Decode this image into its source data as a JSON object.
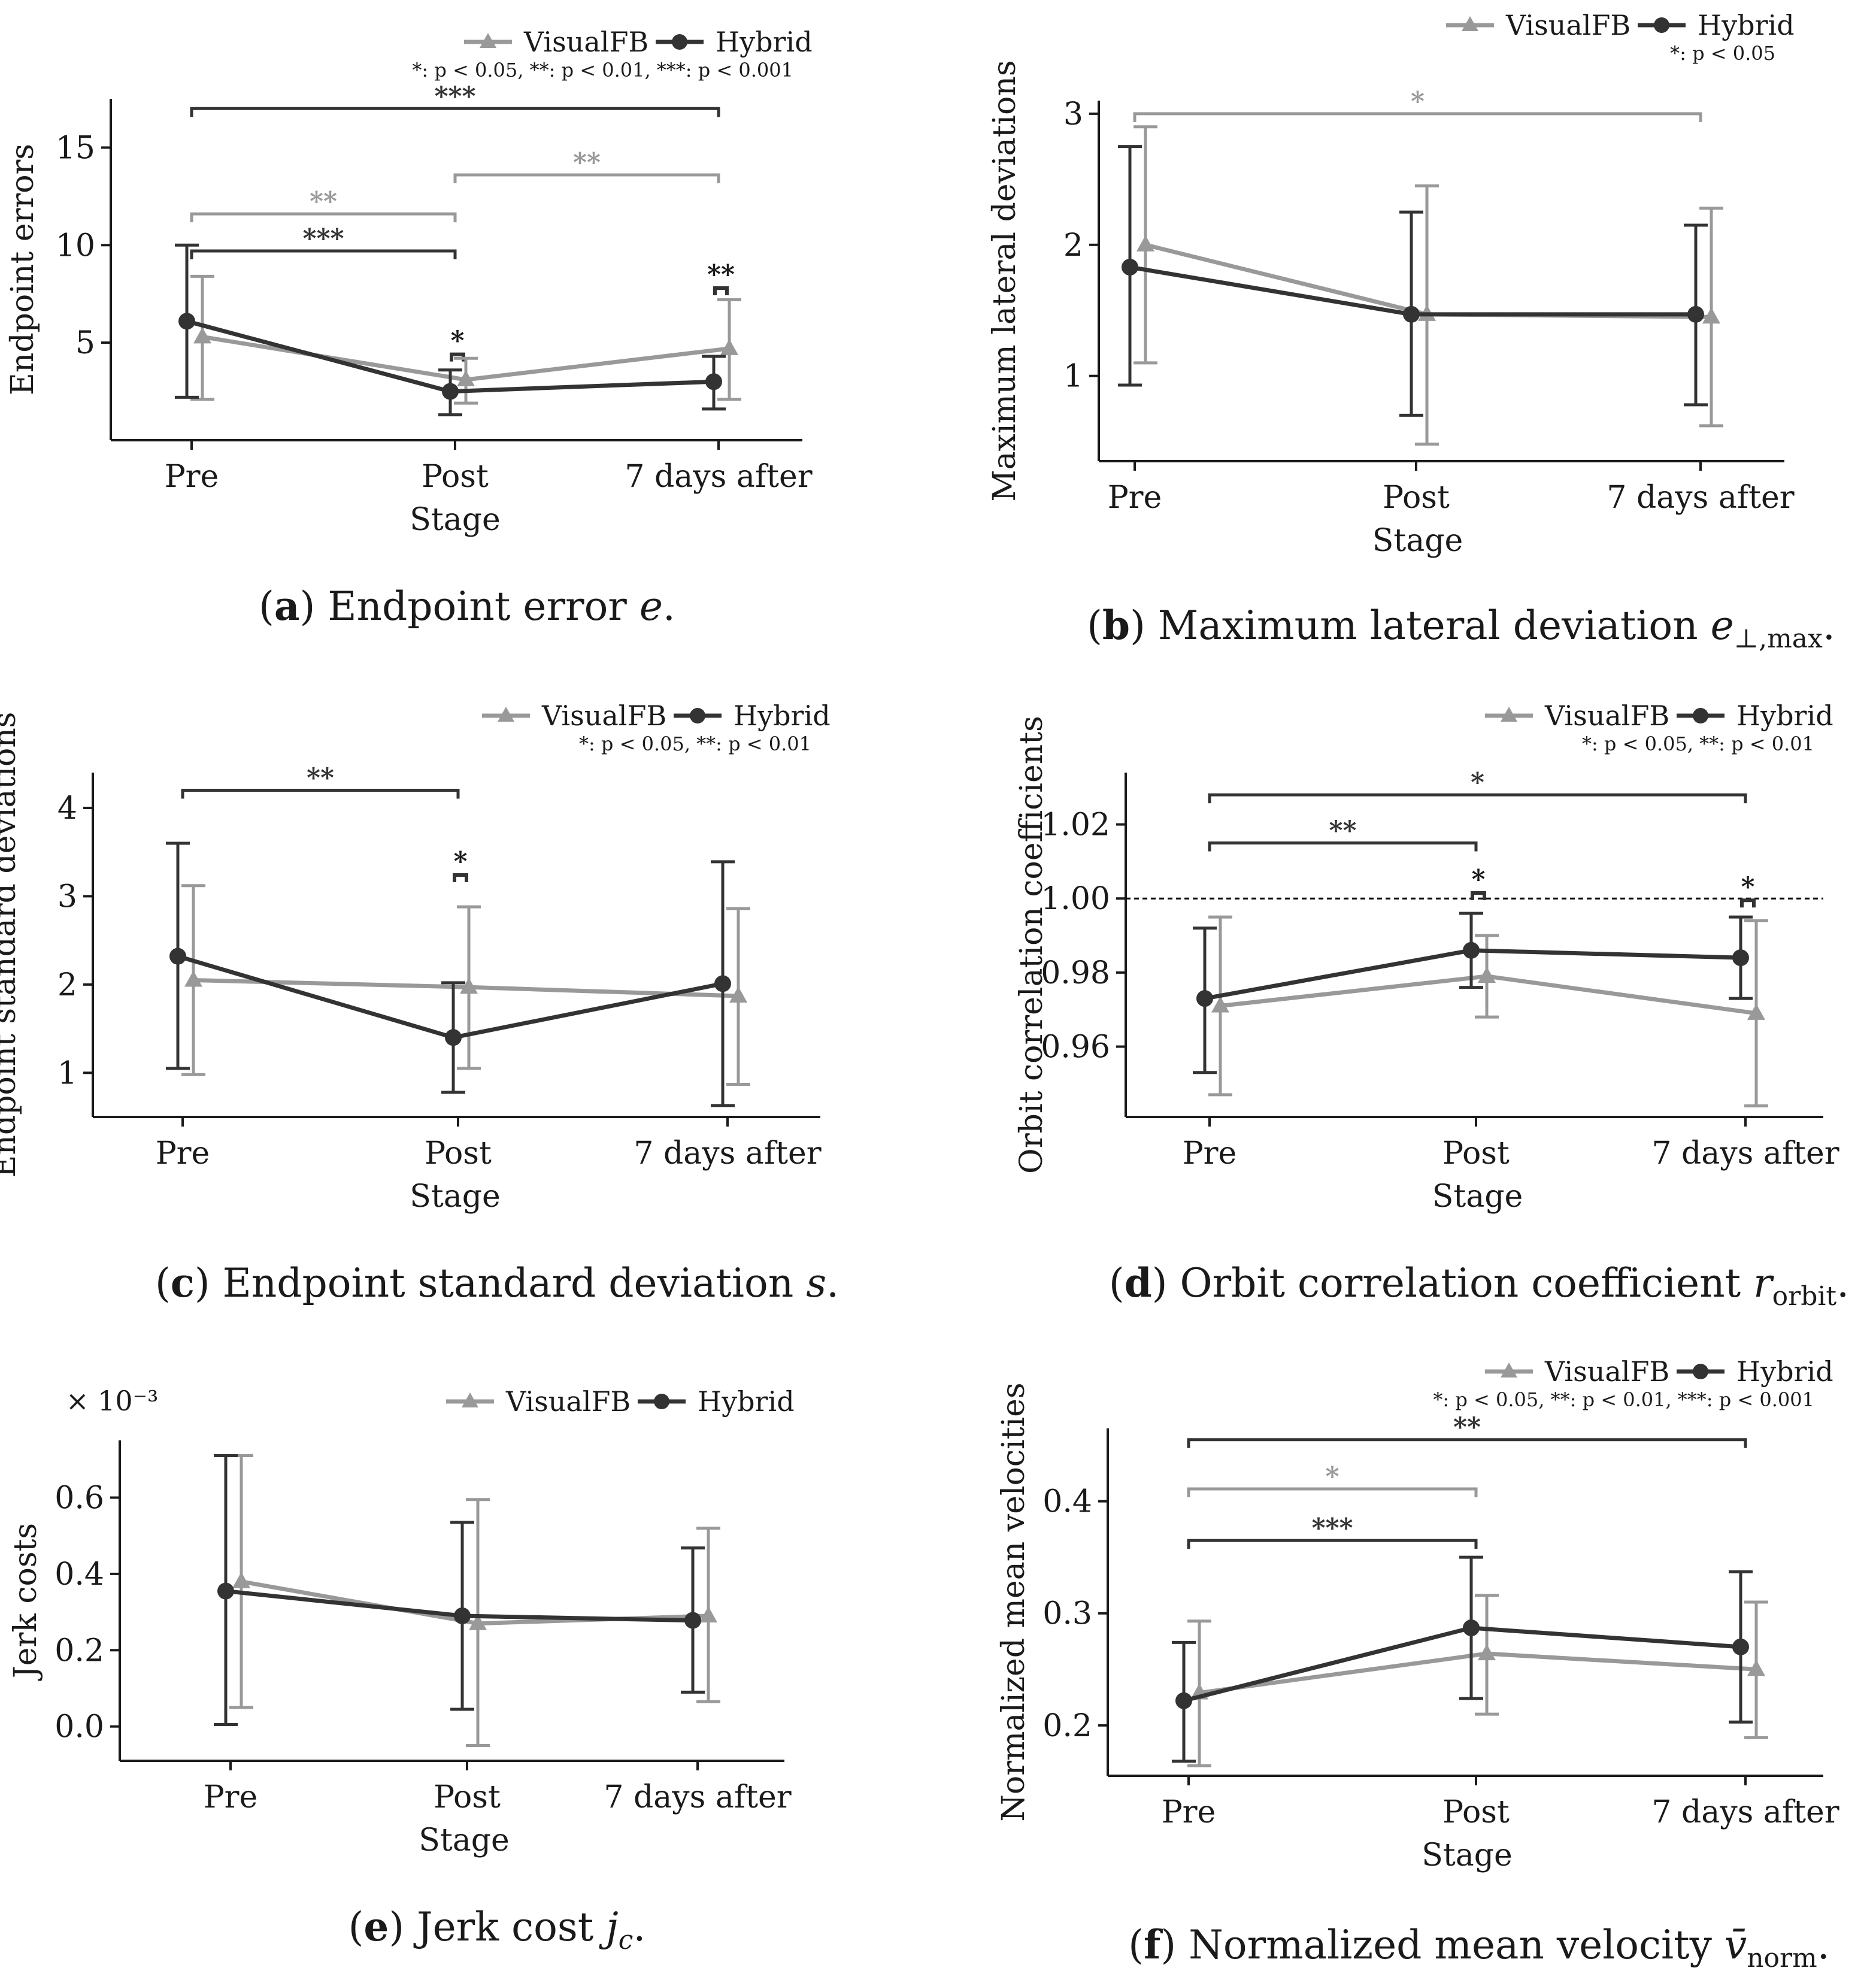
{
  "colors": {
    "visual": "#999999",
    "hybrid": "#333333",
    "axis": "#1a1a1a"
  },
  "chart_data": [
    {
      "type": "line",
      "id": "a",
      "caption": {
        "letter": "a",
        "text": "Endpoint error",
        "symbol": "e",
        "sub": "",
        "end": "."
      },
      "categories": [
        "Pre",
        "Post",
        "7 days after"
      ],
      "xlabel": "Stage",
      "ylabel": "Endpoint errors",
      "ylim": [
        0,
        17.5
      ],
      "yticks": [
        5,
        10,
        15
      ],
      "multiplier": "",
      "legend_position": "top-right",
      "pvalue_note": "*: p < 0.05, **: p < 0.01, ***: p < 0.001",
      "series": [
        {
          "name": "VisualFB",
          "key": "visual",
          "values": [
            5.3,
            3.1,
            4.7
          ],
          "lower": [
            2.1,
            1.9,
            2.1
          ],
          "upper": [
            8.4,
            4.2,
            7.2
          ]
        },
        {
          "name": "Hybrid",
          "key": "hybrid",
          "values": [
            6.1,
            2.5,
            3.0
          ],
          "lower": [
            2.2,
            1.3,
            1.6
          ],
          "upper": [
            10.0,
            3.6,
            4.3
          ]
        }
      ],
      "brackets": [
        {
          "from": 0,
          "to": 2,
          "y": 17.0,
          "label": "***",
          "key": "hybrid"
        },
        {
          "from": 1,
          "to": 2,
          "y": 13.6,
          "label": "**",
          "key": "visual"
        },
        {
          "from": 0,
          "to": 1,
          "y": 11.6,
          "label": "**",
          "key": "visual"
        },
        {
          "from": 0,
          "to": 1,
          "y": 9.7,
          "label": "***",
          "key": "hybrid"
        }
      ],
      "pair_marks": [
        {
          "at": 1,
          "y": 4.4,
          "label": "*"
        },
        {
          "at": 2,
          "y": 7.8,
          "label": "**"
        }
      ]
    },
    {
      "type": "line",
      "id": "b",
      "caption": {
        "letter": "b",
        "text": "Maximum lateral deviation",
        "symbol": "e",
        "sub": "⊥,max",
        "end": "."
      },
      "categories": [
        "Pre",
        "Post",
        "7 days after"
      ],
      "xlabel": "Stage",
      "ylabel": "Maximum lateral deviations",
      "ylim": [
        0.35,
        3.1
      ],
      "yticks": [
        1,
        2,
        3
      ],
      "multiplier": "",
      "legend_position": "top-right",
      "pvalue_note": "*: p < 0.05",
      "series": [
        {
          "name": "VisualFB",
          "key": "visual",
          "values": [
            2.0,
            1.47,
            1.45
          ],
          "lower": [
            1.1,
            0.48,
            0.62
          ],
          "upper": [
            2.9,
            2.45,
            2.28
          ]
        },
        {
          "name": "Hybrid",
          "key": "hybrid",
          "values": [
            1.83,
            1.47,
            1.47
          ],
          "lower": [
            0.93,
            0.7,
            0.78
          ],
          "upper": [
            2.75,
            2.25,
            2.15
          ]
        }
      ],
      "brackets": [
        {
          "from": 0,
          "to": 2,
          "y": 3.0,
          "label": "*",
          "key": "visual"
        }
      ],
      "pair_marks": []
    },
    {
      "type": "line",
      "id": "c",
      "caption": {
        "letter": "c",
        "text": "Endpoint standard deviation",
        "symbol": "s",
        "sub": "",
        "end": "."
      },
      "categories": [
        "Pre",
        "Post",
        "7 days after"
      ],
      "xlabel": "Stage",
      "ylabel": "Endpoint standard deviations",
      "ylim": [
        0.5,
        4.4
      ],
      "yticks": [
        1,
        2,
        3,
        4
      ],
      "multiplier": "",
      "legend_position": "top-right",
      "pvalue_note": "*: p < 0.05, **: p < 0.01",
      "series": [
        {
          "name": "VisualFB",
          "key": "visual",
          "values": [
            2.05,
            1.97,
            1.87
          ],
          "lower": [
            0.98,
            1.05,
            0.87
          ],
          "upper": [
            3.12,
            2.88,
            2.86
          ]
        },
        {
          "name": "Hybrid",
          "key": "hybrid",
          "values": [
            2.32,
            1.4,
            2.01
          ],
          "lower": [
            1.05,
            0.78,
            0.63
          ],
          "upper": [
            3.6,
            2.02,
            3.39
          ]
        }
      ],
      "brackets": [
        {
          "from": 0,
          "to": 1,
          "y": 4.2,
          "label": "**",
          "key": "hybrid"
        }
      ],
      "pair_marks": [
        {
          "at": 1,
          "y": 3.24,
          "label": "*"
        }
      ]
    },
    {
      "type": "line",
      "id": "d",
      "caption": {
        "letter": "d",
        "text": "Orbit correlation coefficient",
        "symbol": "r",
        "sub": "orbit",
        "end": "."
      },
      "categories": [
        "Pre",
        "Post",
        "7 days after"
      ],
      "xlabel": "Stage",
      "ylabel": "Orbit correlation coefficients",
      "ylim": [
        0.941,
        1.034
      ],
      "yticks": [
        0.96,
        0.98,
        1.0,
        1.02
      ],
      "ytick_labels": [
        "0.96",
        "0.98",
        "1.00",
        "1.02"
      ],
      "multiplier": "",
      "reference_line": 1.0,
      "legend_position": "top-right",
      "pvalue_note": "*: p < 0.05, **: p < 0.01",
      "series": [
        {
          "name": "VisualFB",
          "key": "visual",
          "values": [
            0.971,
            0.979,
            0.969
          ],
          "lower": [
            0.947,
            0.968,
            0.944
          ],
          "upper": [
            0.995,
            0.99,
            0.994
          ]
        },
        {
          "name": "Hybrid",
          "key": "hybrid",
          "values": [
            0.973,
            0.986,
            0.984
          ],
          "lower": [
            0.953,
            0.976,
            0.973
          ],
          "upper": [
            0.992,
            0.996,
            0.995
          ]
        }
      ],
      "brackets": [
        {
          "from": 0,
          "to": 2,
          "y": 1.028,
          "label": "*",
          "key": "hybrid"
        },
        {
          "from": 0,
          "to": 1,
          "y": 1.015,
          "label": "**",
          "key": "hybrid"
        }
      ],
      "pair_marks": [
        {
          "at": 1,
          "y": 1.0015,
          "label": "*"
        },
        {
          "at": 2,
          "y": 0.9995,
          "label": "*"
        }
      ]
    },
    {
      "type": "line",
      "id": "e",
      "caption": {
        "letter": "e",
        "text": "Jerk cost",
        "symbol": "j",
        "sub": "c",
        "end": "."
      },
      "categories": [
        "Pre",
        "Post",
        "7 days after"
      ],
      "xlabel": "Stage",
      "ylabel": "Jerk costs",
      "ylim": [
        -0.09,
        0.75
      ],
      "yticks": [
        0.0,
        0.2,
        0.4,
        0.6
      ],
      "ytick_labels": [
        "0.0",
        "0.2",
        "0.4",
        "0.6"
      ],
      "multiplier": "× 10⁻³",
      "legend_position": "top-right",
      "pvalue_note": "",
      "series": [
        {
          "name": "VisualFB",
          "key": "visual",
          "values": [
            0.38,
            0.27,
            0.29
          ],
          "lower": [
            0.05,
            -0.05,
            0.065
          ],
          "upper": [
            0.71,
            0.595,
            0.52
          ]
        },
        {
          "name": "Hybrid",
          "key": "hybrid",
          "values": [
            0.355,
            0.29,
            0.278
          ],
          "lower": [
            0.005,
            0.045,
            0.09
          ],
          "upper": [
            0.71,
            0.535,
            0.468
          ]
        }
      ],
      "brackets": [],
      "pair_marks": []
    },
    {
      "type": "line",
      "id": "f",
      "caption": {
        "letter": "f",
        "text": "Normalized mean velocity",
        "symbol": "v̄",
        "sub": "norm",
        "end": "."
      },
      "categories": [
        "Pre",
        "Post",
        "7 days after"
      ],
      "xlabel": "Stage",
      "ylabel": "Normalized mean velocities",
      "ylim": [
        0.155,
        0.465
      ],
      "yticks": [
        0.2,
        0.3,
        0.4
      ],
      "ytick_labels": [
        "0.2",
        "0.3",
        "0.4"
      ],
      "multiplier": "",
      "legend_position": "top-right",
      "pvalue_note": "*: p < 0.05, **: p < 0.01, ***: p < 0.001",
      "series": [
        {
          "name": "VisualFB",
          "key": "visual",
          "values": [
            0.229,
            0.264,
            0.25
          ],
          "lower": [
            0.164,
            0.21,
            0.189
          ],
          "upper": [
            0.293,
            0.316,
            0.31
          ]
        },
        {
          "name": "Hybrid",
          "key": "hybrid",
          "values": [
            0.222,
            0.287,
            0.27
          ],
          "lower": [
            0.168,
            0.224,
            0.203
          ],
          "upper": [
            0.274,
            0.35,
            0.337
          ]
        }
      ],
      "brackets": [
        {
          "from": 0,
          "to": 2,
          "y": 0.455,
          "label": "**",
          "key": "hybrid"
        },
        {
          "from": 0,
          "to": 1,
          "y": 0.411,
          "label": "*",
          "key": "visual"
        },
        {
          "from": 0,
          "to": 1,
          "y": 0.365,
          "label": "***",
          "key": "hybrid"
        }
      ],
      "pair_marks": []
    }
  ]
}
